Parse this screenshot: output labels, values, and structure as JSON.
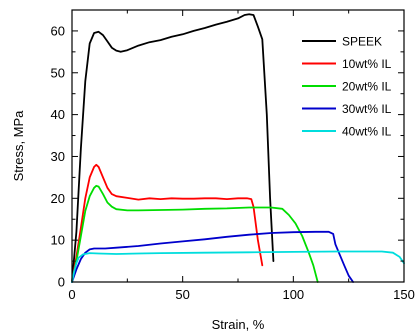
{
  "chart_data": {
    "type": "line",
    "title": "",
    "xlabel": "Strain, %",
    "ylabel": "Stress, MPa",
    "xlim": [
      0,
      150
    ],
    "ylim": [
      0,
      65
    ],
    "xticks": [
      0,
      50,
      100,
      150
    ],
    "yticks": [
      0,
      10,
      20,
      30,
      40,
      50,
      60
    ],
    "x_minor_step": 25,
    "y_minor_step": 5,
    "grid": false,
    "legend_position": "top-right",
    "series": [
      {
        "name": "SPEEK",
        "color": "#000000",
        "points": [
          [
            0,
            0
          ],
          [
            2,
            12
          ],
          [
            4,
            32
          ],
          [
            6,
            48
          ],
          [
            8,
            57
          ],
          [
            10,
            59.5
          ],
          [
            12,
            59.8
          ],
          [
            14,
            59
          ],
          [
            16,
            57.5
          ],
          [
            18,
            56
          ],
          [
            20,
            55.3
          ],
          [
            22,
            55
          ],
          [
            25,
            55.4
          ],
          [
            30,
            56.5
          ],
          [
            35,
            57.3
          ],
          [
            40,
            57.8
          ],
          [
            45,
            58.6
          ],
          [
            50,
            59.2
          ],
          [
            55,
            60
          ],
          [
            60,
            60.7
          ],
          [
            65,
            61.5
          ],
          [
            70,
            62.2
          ],
          [
            75,
            63
          ],
          [
            78,
            63.8
          ],
          [
            80,
            64
          ],
          [
            82,
            63.8
          ],
          [
            84,
            61
          ],
          [
            86,
            58
          ],
          [
            88,
            40
          ],
          [
            89.5,
            20
          ],
          [
            91,
            5
          ]
        ]
      },
      {
        "name": "10wt% IL",
        "color": "#ff0000",
        "points": [
          [
            0,
            0
          ],
          [
            2,
            6
          ],
          [
            4,
            13
          ],
          [
            6,
            20
          ],
          [
            8,
            25
          ],
          [
            10,
            27.5
          ],
          [
            11,
            28
          ],
          [
            12,
            27.5
          ],
          [
            14,
            25
          ],
          [
            16,
            22.5
          ],
          [
            18,
            21
          ],
          [
            20,
            20.5
          ],
          [
            25,
            20.1
          ],
          [
            30,
            19.7
          ],
          [
            35,
            20
          ],
          [
            40,
            19.8
          ],
          [
            45,
            20
          ],
          [
            50,
            19.9
          ],
          [
            55,
            19.9
          ],
          [
            60,
            20
          ],
          [
            65,
            20
          ],
          [
            70,
            19.8
          ],
          [
            75,
            20
          ],
          [
            79,
            20
          ],
          [
            81,
            19.8
          ],
          [
            82,
            18
          ],
          [
            84,
            10
          ],
          [
            86,
            4
          ]
        ]
      },
      {
        "name": "20wt% IL",
        "color": "#00dd00",
        "points": [
          [
            0,
            0
          ],
          [
            2,
            5
          ],
          [
            4,
            11
          ],
          [
            6,
            17
          ],
          [
            8,
            20.5
          ],
          [
            10,
            22.5
          ],
          [
            11,
            23
          ],
          [
            12,
            22.8
          ],
          [
            14,
            21
          ],
          [
            16,
            19
          ],
          [
            18,
            18
          ],
          [
            20,
            17.4
          ],
          [
            25,
            17.1
          ],
          [
            30,
            17.1
          ],
          [
            40,
            17.2
          ],
          [
            50,
            17.3
          ],
          [
            60,
            17.5
          ],
          [
            70,
            17.6
          ],
          [
            80,
            17.8
          ],
          [
            90,
            17.8
          ],
          [
            95,
            17.5
          ],
          [
            98,
            16
          ],
          [
            101,
            14
          ],
          [
            104,
            11
          ],
          [
            107,
            7
          ],
          [
            109,
            4
          ],
          [
            111,
            0
          ]
        ]
      },
      {
        "name": "30wt% IL",
        "color": "#0000cc",
        "points": [
          [
            0,
            0
          ],
          [
            2,
            3
          ],
          [
            4,
            5.5
          ],
          [
            6,
            7
          ],
          [
            8,
            7.8
          ],
          [
            10,
            8
          ],
          [
            15,
            8
          ],
          [
            20,
            8.2
          ],
          [
            30,
            8.6
          ],
          [
            40,
            9.2
          ],
          [
            50,
            9.7
          ],
          [
            60,
            10.2
          ],
          [
            70,
            10.8
          ],
          [
            80,
            11.3
          ],
          [
            90,
            11.7
          ],
          [
            100,
            11.9
          ],
          [
            110,
            12
          ],
          [
            116,
            12
          ],
          [
            118,
            11.5
          ],
          [
            119,
            9
          ],
          [
            121,
            6.5
          ],
          [
            123,
            4
          ],
          [
            125,
            1.5
          ],
          [
            127,
            0
          ]
        ]
      },
      {
        "name": "40wt% IL",
        "color": "#00dddd",
        "points": [
          [
            0,
            0
          ],
          [
            1,
            2.5
          ],
          [
            2,
            4.5
          ],
          [
            3,
            5.8
          ],
          [
            5,
            6.6
          ],
          [
            8,
            6.9
          ],
          [
            12,
            6.8
          ],
          [
            20,
            6.7
          ],
          [
            30,
            6.8
          ],
          [
            40,
            6.9
          ],
          [
            60,
            7
          ],
          [
            80,
            7.1
          ],
          [
            100,
            7.2
          ],
          [
            120,
            7.3
          ],
          [
            140,
            7.3
          ],
          [
            145,
            7
          ],
          [
            148,
            6
          ],
          [
            150,
            4.5
          ]
        ]
      }
    ]
  }
}
